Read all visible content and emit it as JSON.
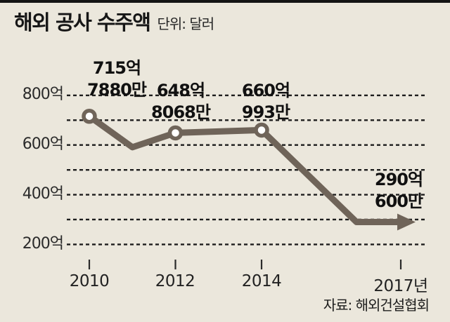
{
  "colors": {
    "background": "#ebe7dc",
    "line": "#6f6459",
    "grid": "#1d1d1d",
    "text": "#1c1c1c",
    "marker_fill": "#ffffff"
  },
  "header": {
    "title": "해외 공사 수주액",
    "unit_label": "단위: 달러"
  },
  "source_label": "자료: 해외건설협회",
  "chart_data": {
    "type": "line",
    "title": "해외 공사 수주액",
    "unit": "억 달러",
    "x": [
      2010,
      2011,
      2012,
      2014,
      2017
    ],
    "values": [
      715.788,
      591,
      648.8068,
      660.0993,
      290.06
    ],
    "marker_years": [
      2010,
      2012,
      2014
    ],
    "arrow_end_year": 2017,
    "grid_values": [
      800,
      700,
      600,
      500,
      400,
      300,
      200
    ],
    "ylim": [
      150,
      860
    ],
    "grid": "horizontal dashed lines every 100억, labels every 200억",
    "legend": "none",
    "yticks": [
      "800억",
      "600억",
      "400억",
      "200억"
    ],
    "xticks": [
      "2010",
      "2012",
      "2014",
      "2017년"
    ],
    "point_labels": [
      {
        "year": "2010",
        "line1": "715억",
        "line2": "7880만"
      },
      {
        "year": "2012",
        "line1": "648억",
        "line2": "8068만"
      },
      {
        "year": "2014",
        "line1": "660억",
        "line2": "993만"
      },
      {
        "year": "2017",
        "line1": "290억",
        "line2": "600만"
      }
    ]
  }
}
